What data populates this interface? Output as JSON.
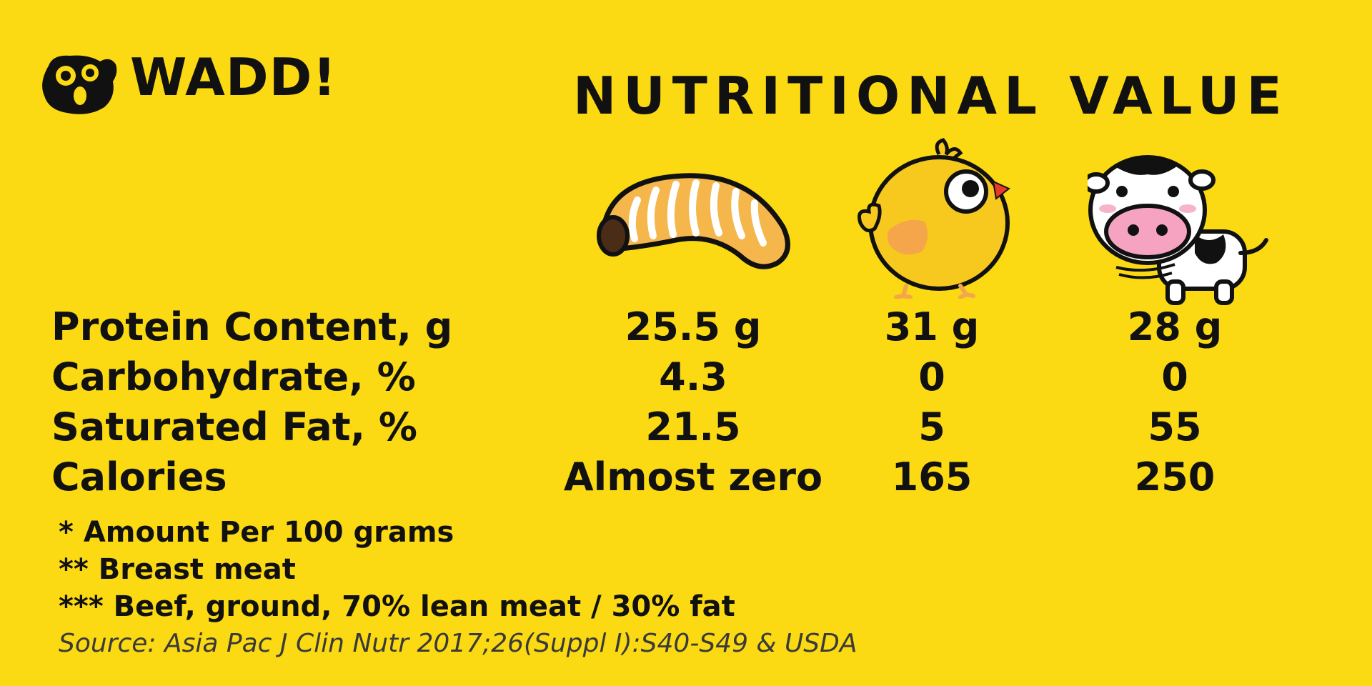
{
  "brand": {
    "name": "WADD!"
  },
  "title": "NUTRITIONAL  VALUE",
  "icons": {
    "logo": "shocked-face-logo-icon",
    "grub": "grub-larva-icon",
    "chick": "chick-icon",
    "cow": "cow-icon"
  },
  "colors": {
    "background": "#FBD913",
    "text": "#111111",
    "source_text": "#3a3a3a"
  },
  "table": {
    "rows": [
      {
        "label": "Protein Content, g",
        "values": [
          "25.5 g",
          "31 g",
          "28 g"
        ]
      },
      {
        "label": "Carbohydrate, %",
        "values": [
          "4.3",
          "0",
          "0"
        ]
      },
      {
        "label": "Saturated Fat, %",
        "values": [
          "21.5",
          "5",
          "55"
        ]
      },
      {
        "label": "Calories",
        "values": [
          "Almost zero",
          "165",
          "250"
        ]
      }
    ]
  },
  "notes": [
    "* Amount Per 100 grams",
    "** Breast meat",
    "*** Beef, ground, 70% lean meat / 30% fat"
  ],
  "source": "Source: Asia Pac J Clin Nutr 2017;26(Suppl I):S40-S49 & USDA"
}
